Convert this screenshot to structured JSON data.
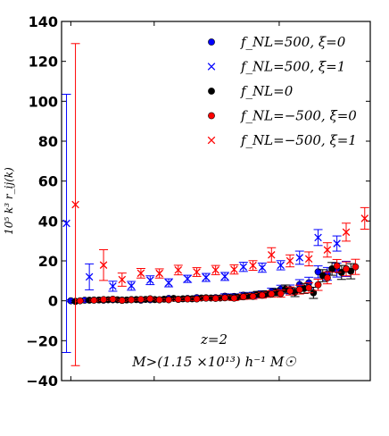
{
  "chart_data": {
    "type": "scatter",
    "xlabel": "",
    "ylabel": "10⁵ k³ r_ij(k)",
    "ylim": [
      -40,
      140
    ],
    "yticks": [
      -40,
      -20,
      0,
      20,
      40,
      60,
      80,
      100,
      120,
      140
    ],
    "ytick_labels": [
      "−40",
      "−20",
      "0",
      "20",
      "40",
      "60",
      "80",
      "100",
      "120",
      "140"
    ],
    "xlim": [
      0,
      1
    ],
    "x_tick_values": [
      0.03,
      0.3,
      0.705
    ],
    "grid": false,
    "legend_position": "top-right",
    "series": [
      {
        "name": "f_NL=500, ξ=0",
        "marker": "circle",
        "color": "#0000ff",
        "x": [
          0.03,
          0.075,
          0.105,
          0.136,
          0.166,
          0.196,
          0.226,
          0.257,
          0.287,
          0.317,
          0.347,
          0.378,
          0.408,
          0.438,
          0.468,
          0.499,
          0.529,
          0.559,
          0.589,
          0.62,
          0.65,
          0.68,
          0.71,
          0.74,
          0.771,
          0.801,
          0.831,
          0.861,
          0.892,
          0.922
        ],
        "y": [
          0,
          0.3,
          0.4,
          0.3,
          0.5,
          0.4,
          0.6,
          0.3,
          0.5,
          0.5,
          1.2,
          0.8,
          1.2,
          1.6,
          1.5,
          1.6,
          2.3,
          2.2,
          2.8,
          2.8,
          3.4,
          4.5,
          5.8,
          5.7,
          8.1,
          9.0,
          14.5,
          13.5,
          15.4,
          16.0
        ],
        "err": [
          0.5,
          0.5,
          0.5,
          0.5,
          0.5,
          0.5,
          0.5,
          0.5,
          0.6,
          0.6,
          0.6,
          0.7,
          0.8,
          0.9,
          1.0,
          1.1,
          1.2,
          1.3,
          1.4,
          1.5,
          1.6,
          1.8,
          2.0,
          2.2,
          2.5,
          2.8,
          3.0,
          3.2,
          3.5,
          3.8
        ]
      },
      {
        "name": "f_NL=500, ξ=1",
        "marker": "x",
        "color": "#0000ff",
        "x": [
          0.016,
          0.09,
          0.166,
          0.226,
          0.287,
          0.347,
          0.408,
          0.468,
          0.529,
          0.589,
          0.65,
          0.71,
          0.771,
          0.831,
          0.892
        ],
        "y": [
          38.8,
          12.0,
          7.3,
          7.5,
          10.3,
          9.0,
          11.0,
          11.7,
          12.2,
          17.0,
          16.6,
          17.8,
          21.6,
          31.7,
          28.7
        ],
        "err": [
          64.7,
          6.5,
          2.5,
          2.2,
          2.2,
          2.0,
          1.8,
          2.0,
          2.0,
          2.3,
          2.3,
          2.3,
          3.3,
          4.0,
          3.8
        ]
      },
      {
        "name": "f_NL=0",
        "marker": "circle",
        "color": "#000000",
        "x": [
          0.045,
          0.09,
          0.121,
          0.151,
          0.181,
          0.211,
          0.242,
          0.272,
          0.302,
          0.332,
          0.363,
          0.393,
          0.423,
          0.453,
          0.484,
          0.514,
          0.544,
          0.574,
          0.605,
          0.635,
          0.665,
          0.695,
          0.725,
          0.756,
          0.786,
          0.816,
          0.846,
          0.876,
          0.907,
          0.937
        ],
        "y": [
          -0.3,
          0.3,
          0.4,
          0.5,
          0.5,
          0.4,
          0.6,
          0.7,
          0.6,
          0.8,
          1.2,
          1.0,
          1.0,
          1.4,
          1.4,
          1.4,
          1.7,
          1.9,
          2.4,
          3.2,
          3.4,
          4.3,
          5.9,
          4.3,
          6.2,
          4.0,
          12.6,
          16.0,
          14.2,
          14.8
        ],
        "err": [
          0.5,
          0.5,
          0.5,
          0.5,
          0.5,
          0.5,
          0.5,
          0.5,
          0.6,
          0.6,
          0.6,
          0.7,
          0.8,
          0.9,
          1.0,
          1.1,
          1.2,
          1.3,
          1.4,
          1.5,
          1.6,
          1.8,
          2.0,
          2.2,
          2.5,
          2.8,
          3.0,
          3.2,
          3.5,
          3.8
        ]
      },
      {
        "name": "f_NL=−500, ξ=0",
        "marker": "circle",
        "color": "#ff0000",
        "x": [
          0.06,
          0.105,
          0.136,
          0.166,
          0.196,
          0.226,
          0.257,
          0.287,
          0.317,
          0.347,
          0.378,
          0.408,
          0.438,
          0.468,
          0.499,
          0.529,
          0.559,
          0.589,
          0.62,
          0.65,
          0.68,
          0.71,
          0.74,
          0.771,
          0.801,
          0.831,
          0.861,
          0.892,
          0.922,
          0.952
        ],
        "y": [
          0,
          0.3,
          0.6,
          0.8,
          0.2,
          0.5,
          0.7,
          1.0,
          0.5,
          0.5,
          0.7,
          0.9,
          0.9,
          1.3,
          1.2,
          1.5,
          1.3,
          2.0,
          2.2,
          2.8,
          3.4,
          3.6,
          4.9,
          5.6,
          6.5,
          8.0,
          11.5,
          17.5,
          16.0,
          17.0
        ],
        "err": [
          0.5,
          0.5,
          0.5,
          0.5,
          0.5,
          0.5,
          0.5,
          0.5,
          0.6,
          0.6,
          0.6,
          0.7,
          0.8,
          0.9,
          1.0,
          1.1,
          1.2,
          1.3,
          1.4,
          1.5,
          1.6,
          1.8,
          2.0,
          2.2,
          2.5,
          2.8,
          3.0,
          3.2,
          3.5,
          3.8
        ]
      },
      {
        "name": "f_NL=−500, ξ=1",
        "marker": "x",
        "color": "#ff0000",
        "x": [
          0.045,
          0.136,
          0.196,
          0.257,
          0.317,
          0.378,
          0.438,
          0.499,
          0.559,
          0.62,
          0.68,
          0.74,
          0.801,
          0.861,
          0.922,
          0.982
        ],
        "y": [
          48.2,
          17.9,
          10.6,
          13.8,
          13.7,
          15.4,
          14.4,
          15.4,
          15.7,
          17.7,
          23.0,
          20.0,
          21.0,
          25.5,
          34.4,
          41.3
        ],
        "err": [
          80.7,
          7.7,
          3.3,
          2.4,
          2.3,
          2.4,
          2.2,
          2.3,
          2.3,
          2.4,
          3.6,
          3.0,
          3.5,
          3.6,
          4.5,
          5.4
        ]
      }
    ],
    "annotations": [
      "z=2",
      "M>(1.15 ×10¹³) h⁻¹ M☉"
    ]
  }
}
